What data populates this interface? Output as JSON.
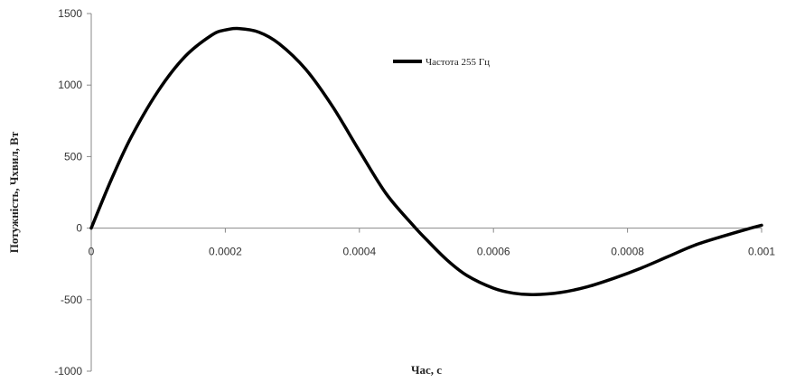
{
  "chart_data": {
    "type": "line",
    "title": "",
    "xlabel": "Час, с",
    "ylabel": "Потужність, Чхвил, Вт",
    "xlim": [
      0,
      0.001
    ],
    "ylim": [
      -1000,
      1500
    ],
    "x_ticks": [
      "0",
      "0.0002",
      "0.0004",
      "0.0006",
      "0.0008",
      "0.001"
    ],
    "y_ticks": [
      "1500",
      "1000",
      "500",
      "0",
      "-500",
      "-1000"
    ],
    "grid": false,
    "legend_position": "top-right",
    "series": [
      {
        "name": "Частота 255 Гц",
        "color": "#000000",
        "x": [
          0,
          3e-05,
          6e-05,
          0.0001,
          0.00014,
          0.00018,
          0.0002,
          0.00022,
          0.00025,
          0.00028,
          0.00032,
          0.00036,
          0.0004,
          0.00044,
          0.00048,
          0.0005,
          0.00053,
          0.00056,
          0.0006,
          0.00063,
          0.00066,
          0.0007,
          0.00074,
          0.00078,
          0.00082,
          0.00086,
          0.0009,
          0.00094,
          0.00098,
          0.001
        ],
        "y": [
          0,
          340,
          640,
          960,
          1200,
          1350,
          1385,
          1395,
          1370,
          1290,
          1110,
          850,
          540,
          240,
          20,
          -80,
          -220,
          -330,
          -420,
          -455,
          -465,
          -450,
          -410,
          -350,
          -280,
          -200,
          -120,
          -60,
          -5,
          20
        ]
      }
    ]
  }
}
